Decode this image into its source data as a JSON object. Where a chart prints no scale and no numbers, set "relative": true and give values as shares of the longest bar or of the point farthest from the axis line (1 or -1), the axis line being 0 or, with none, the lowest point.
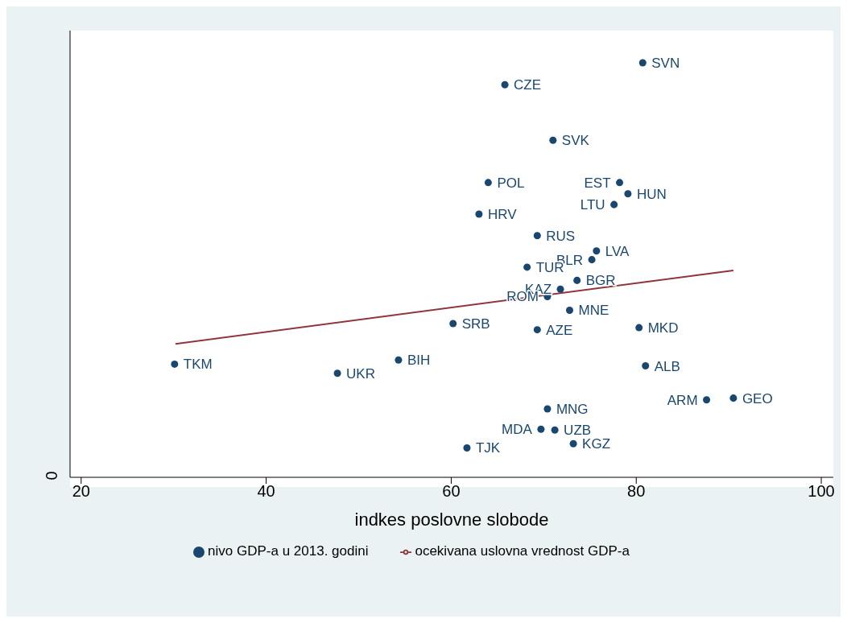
{
  "chart_data": {
    "type": "scatter",
    "xlabel": "indkes poslovne slobode",
    "relative": true,
    "xlim": [
      18.8,
      101.3
    ],
    "xticks": [
      20,
      40,
      60,
      80,
      100
    ],
    "legend": "bottom",
    "series": [
      {
        "name": "nivo GDP-a u 2013. godini",
        "type": "scatter",
        "marker": "circle",
        "color": "#1a476f",
        "x": [
          80.7,
          65.8,
          71.0,
          64.0,
          78.2,
          79.1,
          77.6,
          63.0,
          69.3,
          75.7,
          75.2,
          68.2,
          73.6,
          71.8,
          70.4,
          72.8,
          60.2,
          80.3,
          69.3,
          54.3,
          30.1,
          81.0,
          47.7,
          87.6,
          90.5,
          70.4,
          69.7,
          71.2,
          73.2,
          61.7
        ],
        "values": [
          1.0,
          0.947,
          0.813,
          0.711,
          0.711,
          0.684,
          0.658,
          0.635,
          0.583,
          0.546,
          0.525,
          0.507,
          0.475,
          0.454,
          0.436,
          0.403,
          0.371,
          0.361,
          0.356,
          0.283,
          0.273,
          0.269,
          0.251,
          0.187,
          0.191,
          0.165,
          0.116,
          0.114,
          0.081,
          0.071
        ]
      },
      {
        "name": "ocekivana uslovna vrednost GDP-a",
        "type": "line",
        "color": "#90353b",
        "x": [
          30.2,
          90.5
        ],
        "values": [
          0.322,
          0.499
        ]
      }
    ],
    "annotations": [
      "0",
      {
        "text": "SVN",
        "x": 80.7,
        "y": 1.0
      },
      {
        "text": "CZE",
        "x": 65.8,
        "y": 0.947
      },
      {
        "text": "SVK",
        "x": 71.0,
        "y": 0.813
      },
      {
        "text": "POL",
        "x": 64.0,
        "y": 0.711
      },
      {
        "text": "EST",
        "x": 78.2,
        "y": 0.711
      },
      {
        "text": "HUN",
        "x": 79.1,
        "y": 0.684
      },
      {
        "text": "LTU",
        "x": 77.6,
        "y": 0.658
      },
      {
        "text": "HRV",
        "x": 63.0,
        "y": 0.635
      },
      {
        "text": "RUS",
        "x": 69.3,
        "y": 0.583
      },
      {
        "text": "LVA",
        "x": 75.7,
        "y": 0.546
      },
      {
        "text": "BLR",
        "x": 75.2,
        "y": 0.525
      },
      {
        "text": "TUR",
        "x": 68.2,
        "y": 0.507
      },
      {
        "text": "BGR",
        "x": 73.6,
        "y": 0.475
      },
      {
        "text": "KAZ",
        "x": 71.8,
        "y": 0.454
      },
      {
        "text": "ROM",
        "x": 70.4,
        "y": 0.436
      },
      {
        "text": "MNE",
        "x": 72.8,
        "y": 0.403
      },
      {
        "text": "SRB",
        "x": 60.2,
        "y": 0.371
      },
      {
        "text": "MKD",
        "x": 80.3,
        "y": 0.361
      },
      {
        "text": "AZE",
        "x": 69.3,
        "y": 0.356
      },
      {
        "text": "BIH",
        "x": 54.3,
        "y": 0.283
      },
      {
        "text": "TKM",
        "x": 30.1,
        "y": 0.273
      },
      {
        "text": "ALB",
        "x": 81.0,
        "y": 0.269
      },
      {
        "text": "UKR",
        "x": 47.7,
        "y": 0.251
      },
      {
        "text": "ARM",
        "x": 87.6,
        "y": 0.187
      },
      {
        "text": "GEO",
        "x": 90.5,
        "y": 0.191
      },
      {
        "text": "MNG",
        "x": 70.4,
        "y": 0.165
      },
      {
        "text": "MDA",
        "x": 69.7,
        "y": 0.116
      },
      {
        "text": "UZB",
        "x": 71.2,
        "y": 0.114
      },
      {
        "text": "KGZ",
        "x": 73.2,
        "y": 0.081
      },
      {
        "text": "TJK",
        "x": 61.7,
        "y": 0.071
      }
    ]
  }
}
